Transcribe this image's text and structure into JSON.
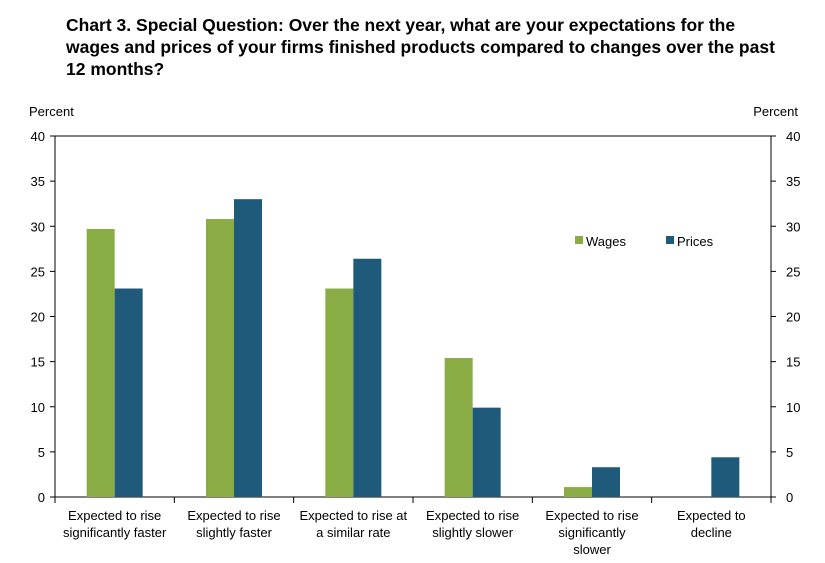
{
  "chart_data": {
    "type": "bar",
    "title_lines": [
      "Chart 3. Special Question: Over the next year, what are your expectations for the",
      "wages and prices of your firms finished products compared to changes over the past",
      "12 months?"
    ],
    "ylabel_left": "Percent",
    "ylabel_right": "Percent",
    "ylim": [
      0,
      40
    ],
    "yticks": [
      0,
      5,
      10,
      15,
      20,
      25,
      30,
      35,
      40
    ],
    "categories": [
      [
        "Expected to rise",
        "significantly faster"
      ],
      [
        "Expected to rise",
        "slightly faster"
      ],
      [
        "Expected to rise at",
        "a similar rate"
      ],
      [
        "Expected to rise",
        "slightly slower"
      ],
      [
        "Expected to rise",
        "significantly",
        "slower"
      ],
      [
        "Expected to",
        "decline"
      ]
    ],
    "series": [
      {
        "name": "Wages",
        "color": "#8aac45",
        "values": [
          29.7,
          30.8,
          23.1,
          15.4,
          1.1,
          0
        ]
      },
      {
        "name": "Prices",
        "color": "#1f5a7a",
        "values": [
          23.1,
          33.0,
          26.4,
          9.9,
          3.3,
          4.4
        ]
      }
    ],
    "legend_position": "top-right",
    "grid": false
  }
}
